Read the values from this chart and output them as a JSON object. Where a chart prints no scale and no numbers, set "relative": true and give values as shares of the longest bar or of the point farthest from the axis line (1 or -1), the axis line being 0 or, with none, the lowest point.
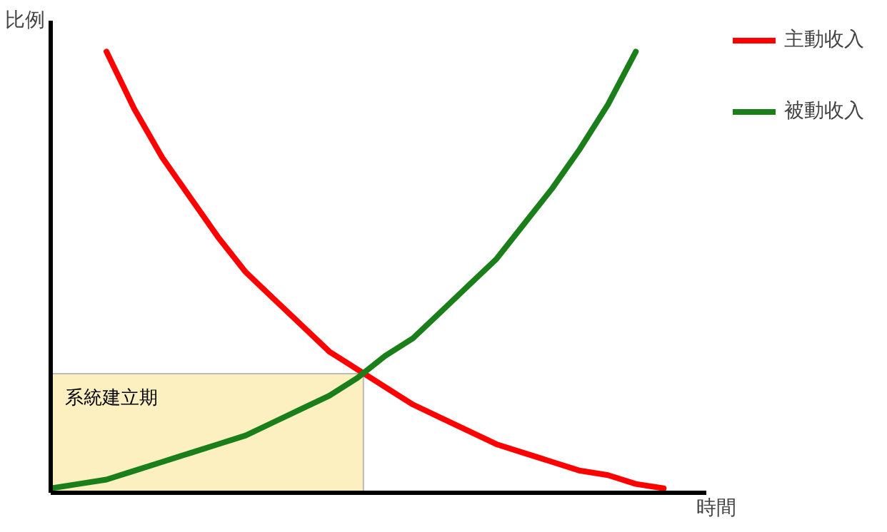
{
  "chart_data": {
    "type": "line",
    "relative": true,
    "xlabel": "時間",
    "ylabel": "比例",
    "categories": [
      null,
      null,
      null,
      null,
      null,
      null,
      null,
      null,
      null,
      null,
      null,
      null,
      null,
      null,
      null,
      null,
      null,
      null,
      null,
      null,
      null,
      null,
      null
    ],
    "series": [
      {
        "name": "主動收入",
        "color": "#ff0000",
        "values": [
          null,
          null,
          1.0,
          0.87,
          0.76,
          0.67,
          0.58,
          0.5,
          0.44,
          0.38,
          0.32,
          0.28,
          0.24,
          0.2,
          0.17,
          0.14,
          0.11,
          0.09,
          0.07,
          0.05,
          0.04,
          0.02,
          0.01
        ]
      },
      {
        "name": "被動收入",
        "color": "#1a7f1a",
        "values": [
          0.01,
          0.02,
          0.03,
          0.05,
          0.07,
          0.09,
          0.11,
          0.13,
          0.16,
          0.19,
          0.22,
          0.26,
          0.31,
          0.35,
          0.41,
          0.47,
          0.53,
          0.61,
          0.69,
          0.78,
          0.88,
          1.0,
          null
        ]
      }
    ],
    "bands": [
      {
        "axis": "y",
        "from": 0,
        "to": 0.27,
        "label": "系統建立期",
        "color": "#fdf0c0"
      }
    ],
    "legend": "top right",
    "grid": false
  }
}
